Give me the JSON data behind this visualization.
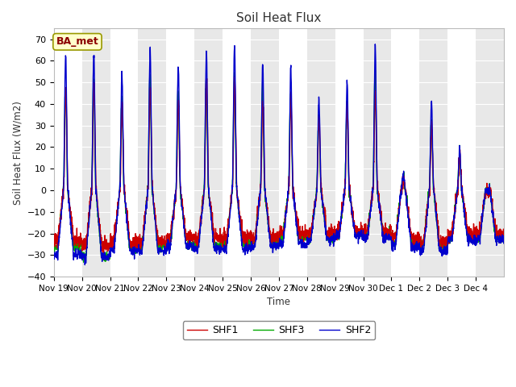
{
  "title": "Soil Heat Flux",
  "ylabel": "Soil Heat Flux (W/m2)",
  "xlabel": "Time",
  "ylim": [
    -40,
    75
  ],
  "yticks": [
    -40,
    -30,
    -20,
    -10,
    0,
    10,
    20,
    30,
    40,
    50,
    60,
    70
  ],
  "colors": {
    "SHF1": "#cc0000",
    "SHF2": "#0000cc",
    "SHF3": "#00aa00"
  },
  "bg_color": "#ffffff",
  "plot_bg": "#ffffff",
  "band_color": "#e8e8e8",
  "n_days": 16,
  "date_labels": [
    "Nov 19",
    "Nov 20",
    "Nov 21",
    "Nov 22",
    "Nov 23",
    "Nov 24",
    "Nov 25",
    "Nov 26",
    "Nov 27",
    "Nov 28",
    "Nov 29",
    "Nov 30",
    "Dec 1",
    "Dec 2",
    "Dec 3",
    "Dec 4"
  ],
  "day_peaks_blue": [
    63,
    64,
    54,
    66,
    58,
    65,
    67,
    59,
    57,
    43,
    50,
    67,
    8,
    41,
    20,
    0
  ],
  "day_peaks_green": [
    48,
    51,
    43,
    53,
    46,
    52,
    53,
    47,
    45,
    35,
    40,
    54,
    6,
    33,
    16,
    0
  ],
  "day_peaks_red": [
    49,
    50,
    40,
    49,
    42,
    52,
    52,
    42,
    42,
    34,
    40,
    45,
    5,
    30,
    15,
    0
  ],
  "night_blue": [
    -30,
    -31,
    -28,
    -28,
    -26,
    -27,
    -27,
    -26,
    -25,
    -23,
    -21,
    -22,
    -26,
    -28,
    -23,
    -23
  ],
  "night_green": [
    -26,
    -31,
    -27,
    -26,
    -25,
    -25,
    -25,
    -24,
    -22,
    -22,
    -20,
    -20,
    -24,
    -26,
    -22,
    -22
  ],
  "night_red": [
    -23,
    -26,
    -24,
    -24,
    -22,
    -22,
    -22,
    -22,
    -20,
    -20,
    -19,
    -19,
    -22,
    -24,
    -20,
    -20
  ],
  "annotation_text": "BA_met",
  "annotation_color": "#8b0000",
  "annotation_bg": "#ffffcc",
  "annotation_edge": "#999900"
}
